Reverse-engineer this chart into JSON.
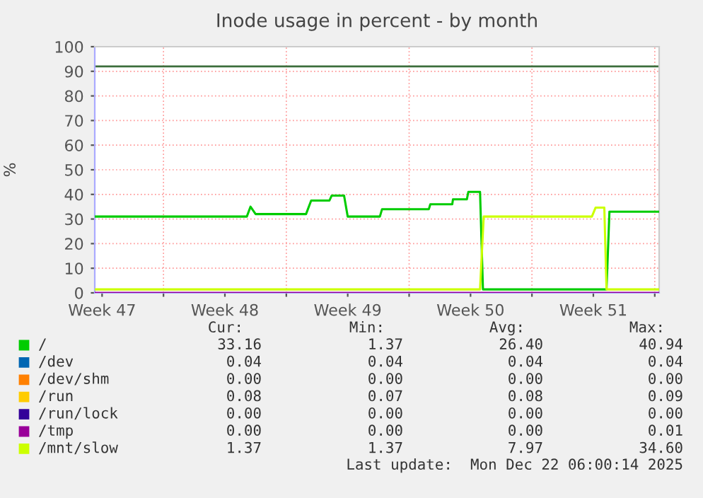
{
  "chart_data": {
    "type": "line",
    "title": "Inode usage in percent - by month",
    "ylabel": "%",
    "xlim": [
      "2025-11-20T02:00",
      "2025-12-22T06:00"
    ],
    "xticks": [
      {
        "value": "2025-11-20T12:00",
        "label": "Week 47"
      },
      {
        "value": "2025-11-24T00:00",
        "label": null
      },
      {
        "value": "2025-11-27T12:00",
        "label": "Week 48"
      },
      {
        "value": "2025-12-01T00:00",
        "label": null
      },
      {
        "value": "2025-12-04T12:00",
        "label": "Week 49"
      },
      {
        "value": "2025-12-08T00:00",
        "label": null
      },
      {
        "value": "2025-12-11T12:00",
        "label": "Week 50"
      },
      {
        "value": "2025-12-15T00:00",
        "label": null
      },
      {
        "value": "2025-12-18T12:00",
        "label": "Week 51"
      },
      {
        "value": "2025-12-22T00:00",
        "label": null
      }
    ],
    "ylim": [
      0,
      100
    ],
    "yticks": [
      0,
      10,
      20,
      30,
      40,
      50,
      60,
      70,
      80,
      90,
      100
    ],
    "grid": true,
    "legend": "bottom",
    "ref_lines": [
      {
        "axis": "y",
        "value": 92,
        "color": "#3c6e3c"
      }
    ],
    "series": [
      {
        "name": "/",
        "color": "#00cc00",
        "x": [
          "2025-11-20T02:00",
          "2025-11-28T18:00",
          "2025-11-28T23:00",
          "2025-11-29T06:00",
          "2025-12-02T03:00",
          "2025-12-02T10:00",
          "2025-12-03T11:00",
          "2025-12-03T14:00",
          "2025-12-04T07:00",
          "2025-12-04T12:00",
          "2025-12-06T08:00",
          "2025-12-06T11:00",
          "2025-12-09T03:00",
          "2025-12-09T05:00",
          "2025-12-10T11:00",
          "2025-12-10T12:00",
          "2025-12-11T07:00",
          "2025-12-11T09:00",
          "2025-12-12T01:00",
          "2025-12-12T05:00",
          "2025-12-19T06:00",
          "2025-12-19T10:00",
          "2025-12-22T06:00"
        ],
        "values": [
          31,
          31,
          35,
          32,
          32,
          37.5,
          37.5,
          39.5,
          39.5,
          31,
          31,
          34,
          34,
          36,
          36,
          38,
          38,
          41,
          41,
          1.4,
          1.4,
          33,
          33
        ]
      },
      {
        "name": "/dev",
        "color": "#0066b3",
        "values": [
          null
        ]
      },
      {
        "name": "/dev/shm",
        "color": "#ff8000",
        "values": [
          null
        ]
      },
      {
        "name": "/run",
        "color": "#ffcc00",
        "values": [
          null
        ]
      },
      {
        "name": "/run/lock",
        "color": "#330099",
        "values": [
          null
        ]
      },
      {
        "name": "/tmp",
        "color": "#990099",
        "x": [
          "2025-11-20T02:00",
          "2025-12-22T06:00"
        ],
        "values": [
          0,
          0
        ]
      },
      {
        "name": "/mnt/slow",
        "color": "#ccff00",
        "x": [
          "2025-11-20T02:00",
          "2025-12-12T01:00",
          "2025-12-12T06:00",
          "2025-12-18T10:00",
          "2025-12-18T15:00",
          "2025-12-19T03:00",
          "2025-12-19T06:00",
          "2025-12-22T06:00"
        ],
        "values": [
          1.4,
          1.4,
          31,
          31,
          34.6,
          34.6,
          1.4,
          1.4
        ]
      }
    ],
    "annotations": [
      "Cur:",
      "Min:",
      "Avg:",
      "Max:",
      "33.16",
      "1.37",
      "26.40",
      "40.94",
      "0.04",
      "0.04",
      "0.04",
      "0.04",
      "0.00",
      "0.00",
      "0.00",
      "0.00",
      "0.08",
      "0.07",
      "0.08",
      "0.09",
      "0.00",
      "0.00",
      "0.00",
      "0.00",
      "0.00",
      "0.00",
      "0.00",
      "0.01",
      "1.37",
      "1.37",
      "7.97",
      "34.60",
      "Last update:  Mon Dec 22 06:00:14 2025"
    ]
  }
}
